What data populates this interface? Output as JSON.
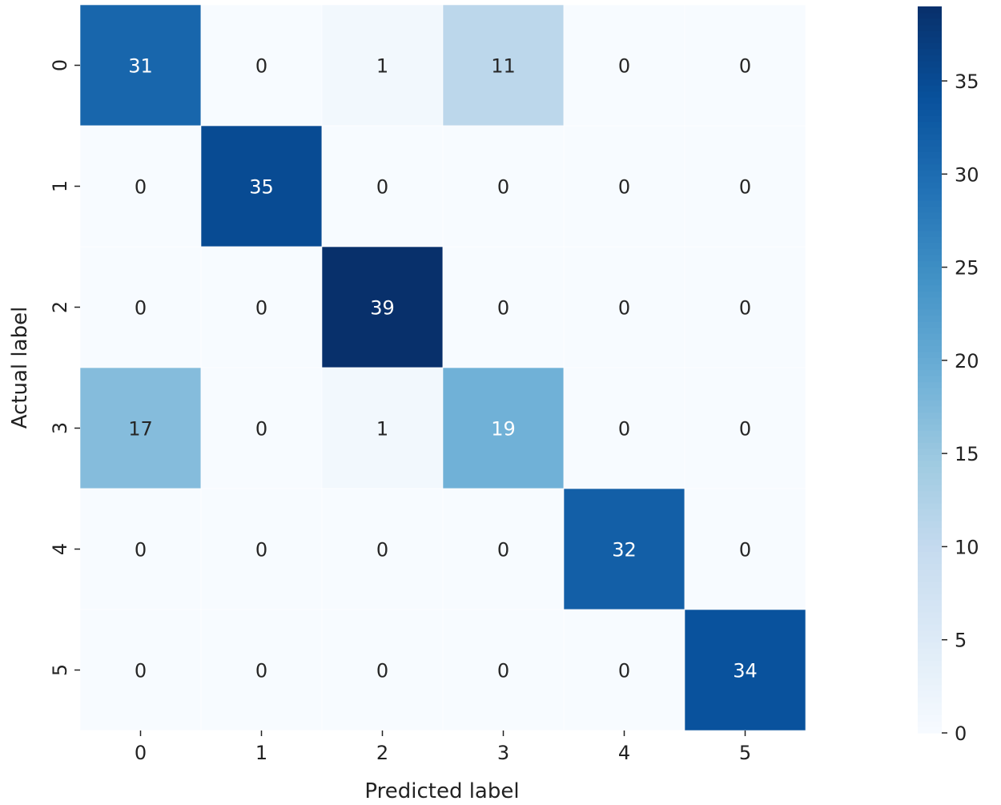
{
  "chart_data": {
    "type": "heatmap",
    "x_categories": [
      "0",
      "1",
      "2",
      "3",
      "4",
      "5"
    ],
    "y_categories": [
      "0",
      "1",
      "2",
      "3",
      "4",
      "5"
    ],
    "values": [
      [
        31,
        0,
        1,
        11,
        0,
        0
      ],
      [
        0,
        35,
        0,
        0,
        0,
        0
      ],
      [
        0,
        0,
        39,
        0,
        0,
        0
      ],
      [
        17,
        0,
        1,
        19,
        0,
        0
      ],
      [
        0,
        0,
        0,
        0,
        32,
        0
      ],
      [
        0,
        0,
        0,
        0,
        0,
        34
      ]
    ],
    "xlabel": "Predicted label",
    "ylabel": "Actual label",
    "colorbar": {
      "min": 0,
      "max": 39,
      "ticks": [
        0,
        5,
        10,
        15,
        20,
        25,
        30,
        35
      ]
    },
    "colormap": "Blues",
    "colormap_stops": [
      "#f7fbff",
      "#deebf7",
      "#c6dbef",
      "#9ecae1",
      "#6baed6",
      "#4292c6",
      "#2171b5",
      "#08519c",
      "#08306b"
    ],
    "text_dark": "#262626",
    "text_light": "#ffffff"
  }
}
